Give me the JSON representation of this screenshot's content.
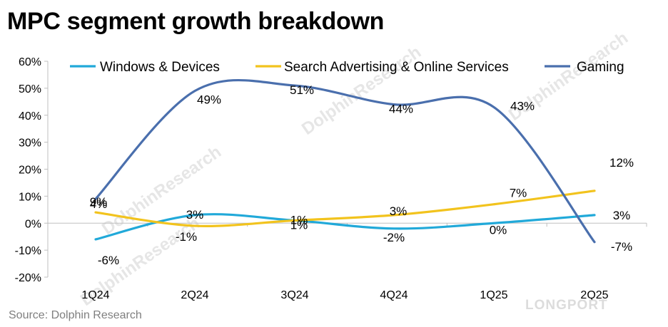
{
  "title": "MPC segment growth breakdown",
  "source": "Source: Dolphin Research",
  "brand": "LONGPORT",
  "watermark": "DolphinResearch",
  "chart_data": {
    "type": "line",
    "title": "MPC segment growth breakdown",
    "categories": [
      "1Q24",
      "2Q24",
      "3Q24",
      "4Q24",
      "1Q25",
      "2Q25"
    ],
    "ylim": [
      -20,
      60
    ],
    "yticks": [
      "60%",
      "50%",
      "40%",
      "30%",
      "20%",
      "10%",
      "0%",
      "-10%",
      "-20%"
    ],
    "ytick_values": [
      60,
      50,
      40,
      30,
      20,
      10,
      0,
      -10,
      -20
    ],
    "legend_position": "top",
    "series": [
      {
        "name": "Windows & Devices",
        "color": "#21a9d9",
        "values": [
          -6,
          3,
          1,
          -2,
          0,
          3
        ],
        "labels": [
          "-6%",
          "3%",
          "1%",
          "-2%",
          "0%",
          "3%"
        ]
      },
      {
        "name": "Search Advertising & Online Services",
        "color": "#f2c31d",
        "values": [
          4,
          -1,
          1,
          3,
          7,
          12
        ],
        "labels": [
          "4%",
          "-1%",
          "1%",
          "3%",
          "7%",
          "12%"
        ]
      },
      {
        "name": "Gaming",
        "color": "#4a6fad",
        "values": [
          9,
          49,
          51,
          44,
          43,
          -7
        ],
        "labels": [
          "9%",
          "49%",
          "51%",
          "44%",
          "43%",
          "-7%"
        ]
      }
    ]
  }
}
